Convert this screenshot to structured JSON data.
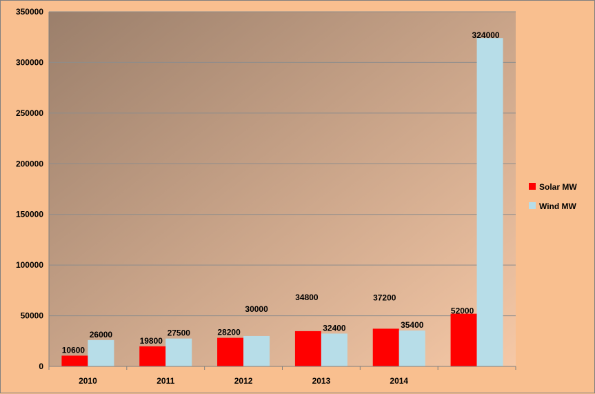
{
  "chart_data": {
    "type": "bar",
    "categories": [
      "2010",
      "2011",
      "2012",
      "2013",
      "2014",
      ""
    ],
    "series": [
      {
        "name": "Solar MW",
        "color": "#ff0000",
        "values": [
          10600,
          19800,
          28200,
          34800,
          37200,
          52000
        ],
        "labels": [
          "10600",
          "19800",
          "28200",
          "34800",
          "37200",
          "52000"
        ]
      },
      {
        "name": "Wind MW",
        "color": "#b7dde8",
        "values": [
          26000,
          27500,
          30000,
          32400,
          35400,
          324000
        ],
        "labels": [
          "26000",
          "27500",
          "30000",
          "32400",
          "35400",
          "324000"
        ]
      }
    ],
    "ylim": [
      0,
      350000
    ],
    "yticks": [
      0,
      50000,
      100000,
      150000,
      200000,
      250000,
      300000,
      350000
    ],
    "ytick_labels": [
      "0",
      "50000",
      "100000",
      "150000",
      "200000",
      "250000",
      "300000",
      "350000"
    ],
    "grid": true,
    "legend_position": "right",
    "plot_gradient": [
      "#9b7f6b",
      "#f6c8a6"
    ]
  }
}
